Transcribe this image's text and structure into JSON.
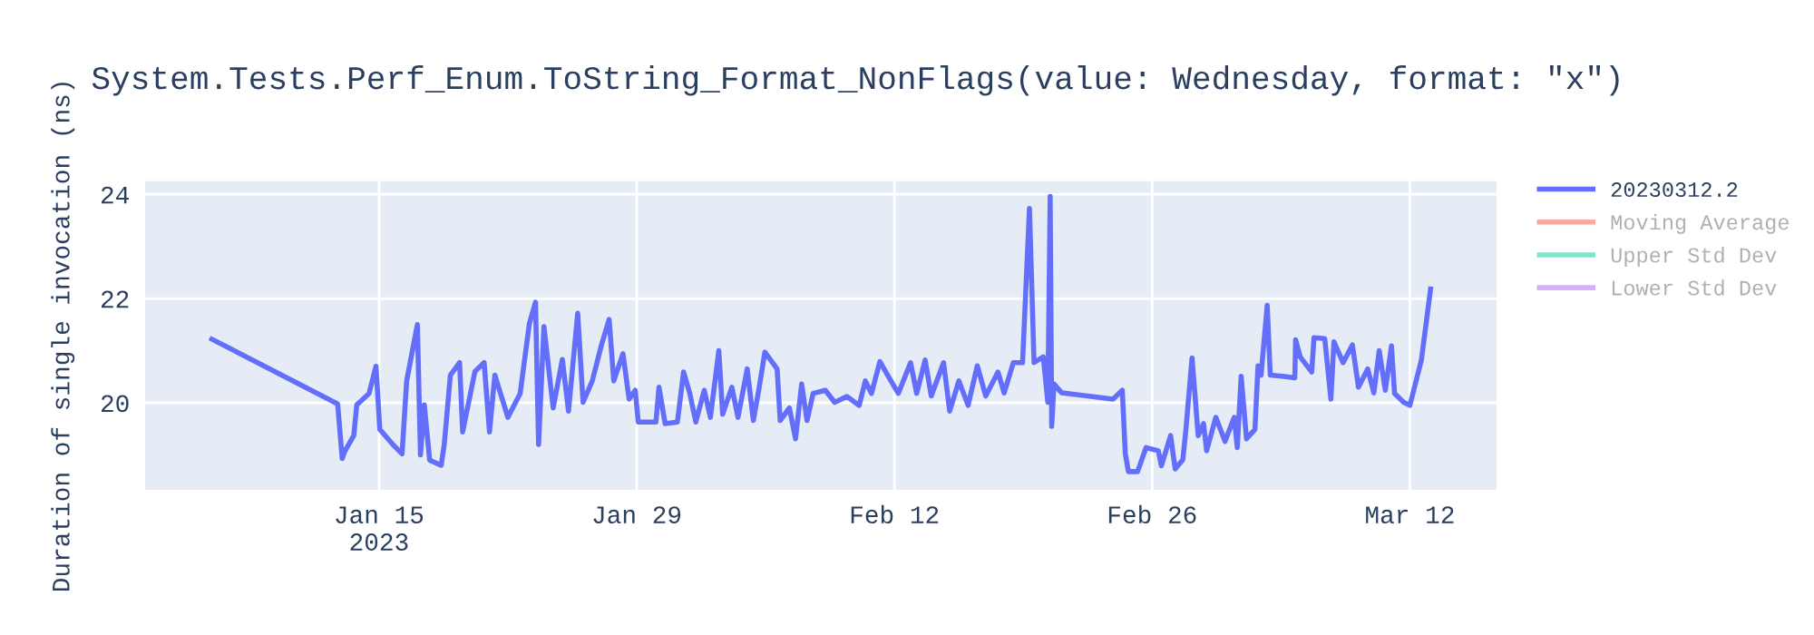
{
  "chart_data": {
    "type": "line",
    "title": "System.Tests.Perf_Enum.ToString_Format_NonFlags(value: Wednesday, format: \"x\")",
    "ylabel": "Duration of single invocation (ns)",
    "xlim": [
      "2023-01-02T07:00",
      "2023-03-16T17:00"
    ],
    "xticks": [
      {
        "value": "2023-01-15",
        "label": "Jan 15\n2023"
      },
      {
        "value": "2023-01-29",
        "label": "Jan 29"
      },
      {
        "value": "2023-02-12",
        "label": "Feb 12"
      },
      {
        "value": "2023-02-26",
        "label": "Feb 26"
      },
      {
        "value": "2023-03-12",
        "label": "Mar 12"
      }
    ],
    "ylim": [
      18.33,
      24.25
    ],
    "yticks": [
      20,
      22,
      24
    ],
    "grid": true,
    "legend": "top right",
    "marker": "none",
    "line_style": "solid",
    "x": [
      "2023-01-05T22:00",
      "2023-01-12T18:00",
      "2023-01-13T00:00",
      "2023-01-13T03:00",
      "2023-01-13T15:00",
      "2023-01-13T19:00",
      "2023-01-14T11:00",
      "2023-01-14T20:00",
      "2023-01-15T01:00",
      "2023-01-15T18:00",
      "2023-01-16T06:00",
      "2023-01-16T12:00",
      "2023-01-17T02:00",
      "2023-01-17T06:00",
      "2023-01-17T11:00",
      "2023-01-17T18:00",
      "2023-01-18T09:00",
      "2023-01-18T13:00",
      "2023-01-18T21:00",
      "2023-01-19T09:00",
      "2023-01-19T13:00",
      "2023-01-20T05:00",
      "2023-01-20T17:00",
      "2023-01-21T00:00",
      "2023-01-21T07:00",
      "2023-01-22T00:00",
      "2023-01-22T16:00",
      "2023-01-23T04:00",
      "2023-01-23T12:00",
      "2023-01-23T16:00",
      "2023-01-23T23:00",
      "2023-01-24T11:00",
      "2023-01-24T23:00",
      "2023-01-25T07:00",
      "2023-01-25T19:00",
      "2023-01-26T02:00",
      "2023-01-26T14:00",
      "2023-01-27T02:00",
      "2023-01-27T12:00",
      "2023-01-27T18:00",
      "2023-01-28T06:00",
      "2023-01-28T14:00",
      "2023-01-28T22:00",
      "2023-01-29T02:00",
      "2023-01-30T01:00",
      "2023-01-30T05:00",
      "2023-01-30T13:00",
      "2023-01-31T05:00",
      "2023-01-31T13:00",
      "2023-01-31T21:00",
      "2023-02-01T05:00",
      "2023-02-01T16:00",
      "2023-02-02T00:00",
      "2023-02-02T11:00",
      "2023-02-02T16:00",
      "2023-02-03T04:00",
      "2023-02-03T12:00",
      "2023-02-04T00:00",
      "2023-02-04T08:00",
      "2023-02-04T15:00",
      "2023-02-04T23:00",
      "2023-02-05T15:00",
      "2023-02-05T19:00",
      "2023-02-06T07:00",
      "2023-02-06T15:00",
      "2023-02-06T23:00",
      "2023-02-07T06:00",
      "2023-02-07T14:00",
      "2023-02-08T06:00",
      "2023-02-08T18:00",
      "2023-02-09T10:00",
      "2023-02-10T02:00",
      "2023-02-10T10:00",
      "2023-02-10T18:00",
      "2023-02-11T05:00",
      "2023-02-11T17:00",
      "2023-02-12T05:00",
      "2023-02-12T21:00",
      "2023-02-13T05:00",
      "2023-02-13T16:00",
      "2023-02-14T00:00",
      "2023-02-14T16:00",
      "2023-02-15T00:00",
      "2023-02-15T12:00",
      "2023-02-16T00:00",
      "2023-02-16T12:00",
      "2023-02-16T23:00",
      "2023-02-17T15:00",
      "2023-02-17T23:00",
      "2023-02-18T11:00",
      "2023-02-18T23:00",
      "2023-02-19T08:00",
      "2023-02-19T14:00",
      "2023-02-20T02:00",
      "2023-02-20T08:00",
      "2023-02-20T11:00",
      "2023-02-20T13:00",
      "2023-02-20T16:00",
      "2023-02-21T02:00",
      "2023-02-23T21:00",
      "2023-02-24T09:00",
      "2023-02-24T13:00",
      "2023-02-24T17:00",
      "2023-02-25T05:00",
      "2023-02-25T16:00",
      "2023-02-26T08:00",
      "2023-02-26T12:00",
      "2023-02-27T00:00",
      "2023-02-27T06:00",
      "2023-02-27T16:00",
      "2023-02-27T20:00",
      "2023-02-28T04:00",
      "2023-02-28T12:00",
      "2023-02-28T19:00",
      "2023-02-28T23:00",
      "2023-03-01T11:00",
      "2023-03-01T23:00",
      "2023-03-02T11:00",
      "2023-03-02T15:00",
      "2023-03-02T20:00",
      "2023-03-03T03:00",
      "2023-03-03T14:00",
      "2023-03-03T18:00",
      "2023-03-03T22:00",
      "2023-03-04T06:00",
      "2023-03-04T10:00",
      "2023-03-05T02:00",
      "2023-03-05T18:00",
      "2023-03-05T19:00",
      "2023-03-06T01:00",
      "2023-03-06T16:00",
      "2023-03-06T19:00",
      "2023-03-07T09:00",
      "2023-03-07T17:00",
      "2023-03-07T21:00",
      "2023-03-08T09:00",
      "2023-03-08T21:00",
      "2023-03-09T05:00",
      "2023-03-09T17:00",
      "2023-03-10T01:00",
      "2023-03-10T08:00",
      "2023-03-10T16:00",
      "2023-03-11T00:00",
      "2023-03-11T04:00",
      "2023-03-11T16:00",
      "2023-03-12T00:00",
      "2023-03-12T04:00",
      "2023-03-12T15:00",
      "2023-03-13T03:00"
    ],
    "series": [
      {
        "name": "20230312.2",
        "color": "#636efa",
        "values": [
          21.22,
          19.98,
          18.93,
          19.06,
          19.37,
          19.96,
          20.18,
          20.7,
          19.49,
          19.2,
          19.02,
          20.42,
          21.5,
          19.0,
          19.96,
          18.9,
          18.8,
          19.2,
          20.53,
          20.77,
          19.44,
          20.6,
          20.77,
          19.44,
          20.53,
          19.72,
          20.18,
          21.52,
          21.93,
          19.2,
          21.46,
          19.9,
          20.83,
          19.84,
          21.72,
          20.01,
          20.42,
          21.11,
          21.6,
          20.42,
          20.94,
          20.07,
          20.24,
          19.63,
          19.63,
          20.3,
          19.6,
          19.63,
          20.59,
          20.19,
          19.63,
          20.24,
          19.72,
          21.0,
          19.78,
          20.3,
          19.72,
          20.65,
          19.66,
          20.24,
          20.97,
          20.65,
          19.66,
          19.9,
          19.31,
          20.36,
          19.66,
          20.18,
          20.24,
          20.01,
          20.12,
          19.95,
          20.42,
          20.18,
          20.79,
          20.48,
          20.18,
          20.77,
          20.18,
          20.82,
          20.13,
          20.77,
          19.84,
          20.42,
          19.95,
          20.71,
          20.13,
          20.59,
          20.19,
          20.77,
          20.77,
          23.73,
          20.77,
          20.88,
          20.01,
          23.96,
          19.55,
          20.36,
          20.19,
          20.07,
          20.24,
          19.02,
          18.68,
          18.68,
          19.14,
          19.08,
          18.79,
          19.37,
          18.73,
          18.91,
          19.49,
          20.86,
          19.37,
          19.6,
          19.08,
          19.72,
          19.26,
          19.72,
          19.14,
          20.51,
          19.31,
          19.49,
          20.71,
          20.53,
          21.87,
          20.53,
          20.51,
          20.48,
          21.21,
          20.88,
          20.59,
          21.25,
          21.23,
          20.07,
          21.17,
          20.77,
          21.11,
          20.3,
          20.65,
          20.19,
          21.0,
          20.24,
          21.09,
          20.18,
          20.01,
          19.95,
          20.18,
          20.82,
          22.18
        ]
      },
      {
        "name": "Moving Average",
        "color": "#ef553b",
        "values": [
          null,
          null,
          null,
          null,
          null,
          null,
          null,
          null,
          null,
          null,
          null,
          null,
          null,
          null,
          null,
          null,
          null,
          null,
          null,
          null,
          null,
          null,
          null,
          null,
          null,
          null,
          null,
          null,
          null,
          null,
          null,
          null,
          null,
          null,
          null,
          null,
          null,
          null,
          null,
          null,
          null,
          null,
          null,
          null,
          null,
          null,
          null,
          null,
          null,
          null,
          null,
          null,
          null,
          null,
          null,
          null,
          null,
          null,
          null,
          null,
          null,
          null,
          null,
          null,
          null,
          null,
          null,
          null,
          null,
          null,
          null,
          null,
          null,
          null,
          null,
          null,
          null,
          null,
          null,
          null,
          null,
          null,
          null,
          null,
          null,
          null,
          null,
          null,
          null,
          null,
          null,
          null,
          null,
          null,
          null,
          null,
          null,
          null,
          null,
          null,
          null,
          null,
          null,
          null,
          null,
          null,
          null,
          null,
          null,
          null,
          null,
          null,
          null,
          null,
          null,
          null,
          null,
          null,
          null,
          null,
          null,
          null,
          null,
          null,
          null,
          null,
          null,
          null,
          null,
          null,
          null,
          null,
          null,
          null,
          null,
          null,
          null,
          null,
          null,
          null,
          null,
          null,
          null,
          null,
          null,
          null,
          null,
          null,
          null
        ]
      },
      {
        "name": "Upper Std Dev",
        "color": "#00cc96",
        "values": [
          null,
          null,
          null,
          null,
          null,
          null,
          null,
          null,
          null,
          null,
          null,
          null,
          null,
          null,
          null,
          null,
          null,
          null,
          null,
          null,
          null,
          null,
          null,
          null,
          null,
          null,
          null,
          null,
          null,
          null,
          null,
          null,
          null,
          null,
          null,
          null,
          null,
          null,
          null,
          null,
          null,
          null,
          null,
          null,
          null,
          null,
          null,
          null,
          null,
          null,
          null,
          null,
          null,
          null,
          null,
          null,
          null,
          null,
          null,
          null,
          null,
          null,
          null,
          null,
          null,
          null,
          null,
          null,
          null,
          null,
          null,
          null,
          null,
          null,
          null,
          null,
          null,
          null,
          null,
          null,
          null,
          null,
          null,
          null,
          null,
          null,
          null,
          null,
          null,
          null,
          null,
          null,
          null,
          null,
          null,
          null,
          null,
          null,
          null,
          null,
          null,
          null,
          null,
          null,
          null,
          null,
          null,
          null,
          null,
          null,
          null,
          null,
          null,
          null,
          null,
          null,
          null,
          null,
          null,
          null,
          null,
          null,
          null,
          null,
          null,
          null,
          null,
          null,
          null,
          null,
          null,
          null,
          null,
          null,
          null,
          null,
          null,
          null,
          null,
          null,
          null,
          null,
          null,
          null,
          null,
          null,
          null,
          null,
          null
        ]
      },
      {
        "name": "Lower Std Dev",
        "color": "#ab63fa",
        "values": [
          null,
          null,
          null,
          null,
          null,
          null,
          null,
          null,
          null,
          null,
          null,
          null,
          null,
          null,
          null,
          null,
          null,
          null,
          null,
          null,
          null,
          null,
          null,
          null,
          null,
          null,
          null,
          null,
          null,
          null,
          null,
          null,
          null,
          null,
          null,
          null,
          null,
          null,
          null,
          null,
          null,
          null,
          null,
          null,
          null,
          null,
          null,
          null,
          null,
          null,
          null,
          null,
          null,
          null,
          null,
          null,
          null,
          null,
          null,
          null,
          null,
          null,
          null,
          null,
          null,
          null,
          null,
          null,
          null,
          null,
          null,
          null,
          null,
          null,
          null,
          null,
          null,
          null,
          null,
          null,
          null,
          null,
          null,
          null,
          null,
          null,
          null,
          null,
          null,
          null,
          null,
          null,
          null,
          null,
          null,
          null,
          null,
          null,
          null,
          null,
          null,
          null,
          null,
          null,
          null,
          null,
          null,
          null,
          null,
          null,
          null,
          null,
          null,
          null,
          null,
          null,
          null,
          null,
          null,
          null,
          null,
          null,
          null,
          null,
          null,
          null,
          null,
          null,
          null,
          null,
          null,
          null,
          null,
          null,
          null,
          null,
          null,
          null,
          null,
          null,
          null,
          null,
          null,
          null,
          null,
          null,
          null,
          null,
          null
        ]
      }
    ]
  }
}
